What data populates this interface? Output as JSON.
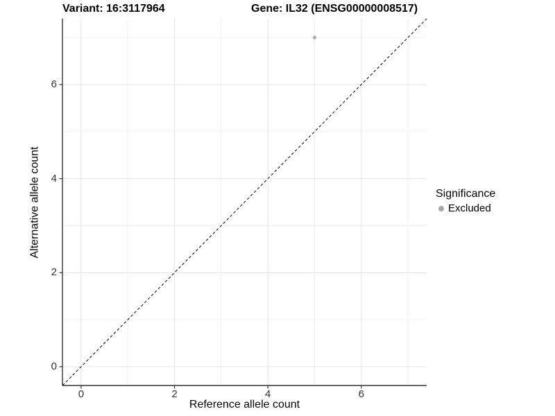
{
  "titles": {
    "left": "Variant: 16:3117964",
    "right": "Gene: IL32 (ENSG00000008517)"
  },
  "chart_data": {
    "type": "scatter",
    "title_left": "Variant: 16:3117964",
    "title_right": "Gene: IL32 (ENSG00000008517)",
    "xlabel": "Reference allele count",
    "ylabel": "Alternative allele count",
    "xlim": [
      -0.4,
      7.4
    ],
    "ylim": [
      -0.4,
      7.4
    ],
    "x_major_ticks": [
      0,
      2,
      4,
      6
    ],
    "y_major_ticks": [
      0,
      2,
      4,
      6
    ],
    "x_minor_ticks": [
      1,
      3,
      5,
      7
    ],
    "y_minor_ticks": [
      1,
      3,
      5,
      7
    ],
    "grid": "major-and-minor",
    "reference_line": {
      "equation": "y = x",
      "style": "dashed",
      "color": "#000000"
    },
    "series": [
      {
        "name": "Excluded",
        "color": "#b0b0b0",
        "points": [
          {
            "x": 5,
            "y": 7
          }
        ]
      }
    ],
    "legend": {
      "title": "Significance",
      "position": "right",
      "items": [
        {
          "label": "Excluded",
          "color": "#a6a6a6"
        }
      ]
    }
  },
  "colors": {
    "major_grid": "#e3e3e3",
    "minor_grid": "#f1f1f1",
    "axis_line": "#333333",
    "tick_mark": "#333333",
    "point": "#b0b0b0",
    "legend_dot": "#a6a6a6",
    "reference_line": "#000000"
  },
  "legend": {
    "title": "Significance",
    "item_label": "Excluded"
  }
}
